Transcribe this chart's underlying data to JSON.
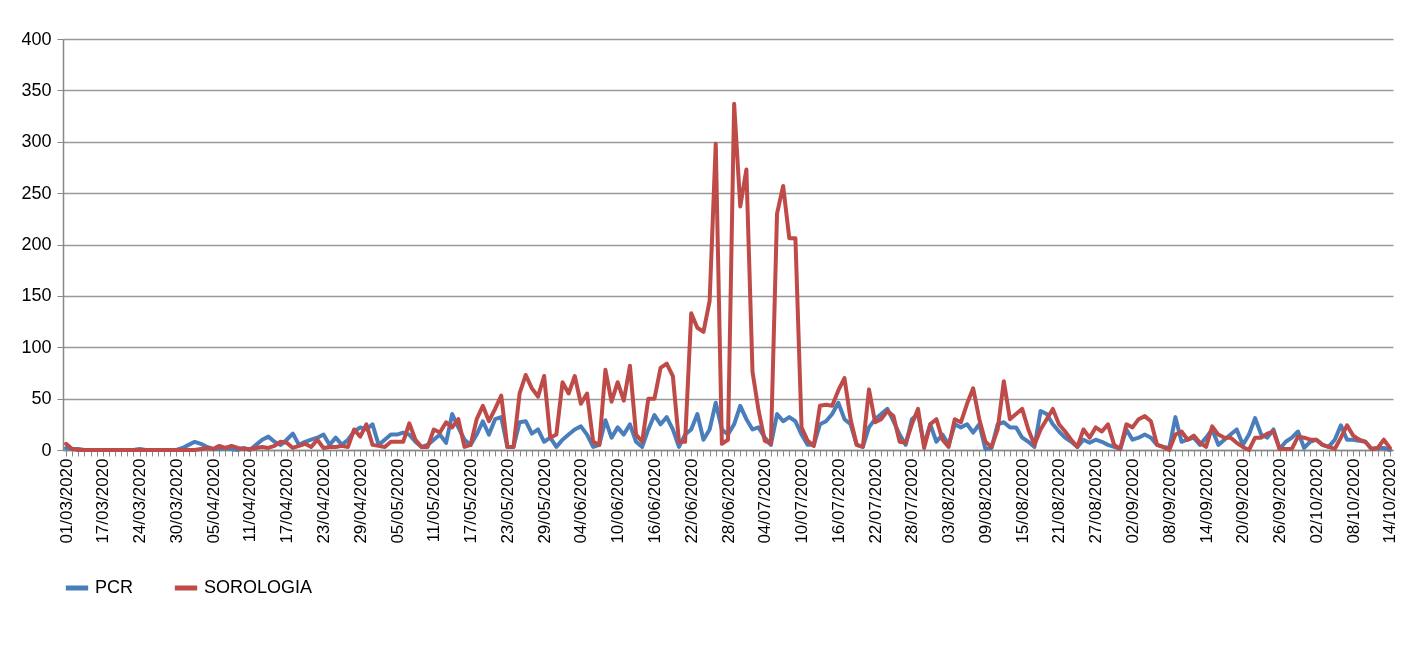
{
  "chart_data": {
    "type": "line",
    "categories": [
      "01/03/2020",
      null,
      null,
      null,
      null,
      null,
      "17/03/2020",
      null,
      null,
      null,
      null,
      null,
      "24/03/2020",
      null,
      null,
      null,
      null,
      null,
      "30/03/2020",
      null,
      null,
      null,
      null,
      null,
      "05/04/2020",
      null,
      null,
      null,
      null,
      null,
      "11/04/2020",
      null,
      null,
      null,
      null,
      null,
      "17/04/2020",
      null,
      null,
      null,
      null,
      null,
      "23/04/2020",
      null,
      null,
      null,
      null,
      null,
      "29/04/2020",
      null,
      null,
      null,
      null,
      null,
      "05/05/2020",
      null,
      null,
      null,
      null,
      null,
      "11/05/2020",
      null,
      null,
      null,
      null,
      null,
      "17/05/2020",
      null,
      null,
      null,
      null,
      null,
      "23/05/2020",
      null,
      null,
      null,
      null,
      null,
      "29/05/2020",
      null,
      null,
      null,
      null,
      null,
      "04/06/2020",
      null,
      null,
      null,
      null,
      null,
      "10/06/2020",
      null,
      null,
      null,
      null,
      null,
      "16/06/2020",
      null,
      null,
      null,
      null,
      null,
      "22/06/2020",
      null,
      null,
      null,
      null,
      null,
      "28/06/2020",
      null,
      null,
      null,
      null,
      null,
      "04/07/2020",
      null,
      null,
      null,
      null,
      null,
      "10/07/2020",
      null,
      null,
      null,
      null,
      null,
      "16/07/2020",
      null,
      null,
      null,
      null,
      null,
      "22/07/2020",
      null,
      null,
      null,
      null,
      null,
      "28/07/2020",
      null,
      null,
      null,
      null,
      null,
      "03/08/2020",
      null,
      null,
      null,
      null,
      null,
      "09/08/2020",
      null,
      null,
      null,
      null,
      null,
      "15/08/2020",
      null,
      null,
      null,
      null,
      null,
      "21/08/2020",
      null,
      null,
      null,
      null,
      null,
      "27/08/2020",
      null,
      null,
      null,
      null,
      null,
      "02/09/2020",
      null,
      null,
      null,
      null,
      null,
      "08/09/2020",
      null,
      null,
      null,
      null,
      null,
      "14/09/2020",
      null,
      null,
      null,
      null,
      null,
      "20/09/2020",
      null,
      null,
      null,
      null,
      null,
      "26/09/2020",
      null,
      null,
      null,
      null,
      null,
      "02/10/2020",
      null,
      null,
      null,
      null,
      null,
      "08/10/2020",
      null,
      null,
      null,
      null,
      null,
      "14/10/2020"
    ],
    "series": [
      {
        "name": "PCR",
        "color": "#4a7ebb",
        "values": [
          2,
          1,
          1,
          0,
          0,
          0,
          0,
          0,
          0,
          0,
          0,
          0,
          1,
          0,
          0,
          0,
          0,
          0,
          0,
          2,
          5,
          8,
          6,
          3,
          1,
          1,
          2,
          1,
          0,
          2,
          0,
          5,
          10,
          13,
          8,
          5,
          10,
          16,
          5,
          8,
          10,
          12,
          15,
          5,
          12,
          5,
          10,
          18,
          22,
          20,
          25,
          5,
          10,
          15,
          15,
          17,
          15,
          8,
          3,
          5,
          10,
          15,
          7,
          35,
          22,
          10,
          5,
          15,
          28,
          15,
          30,
          32,
          3,
          3,
          27,
          28,
          16,
          20,
          8,
          12,
          3,
          10,
          15,
          20,
          23,
          15,
          3,
          5,
          29,
          12,
          22,
          15,
          25,
          8,
          3,
          20,
          34,
          25,
          32,
          20,
          3,
          15,
          20,
          35,
          10,
          20,
          46,
          20,
          15,
          25,
          43,
          30,
          20,
          22,
          12,
          5,
          35,
          28,
          32,
          28,
          15,
          5,
          5,
          25,
          28,
          35,
          46,
          30,
          25,
          5,
          3,
          22,
          30,
          35,
          40,
          28,
          15,
          5,
          30,
          35,
          5,
          25,
          8,
          15,
          5,
          25,
          22,
          25,
          17,
          25,
          1,
          2,
          25,
          27,
          22,
          22,
          12,
          8,
          3,
          38,
          35,
          25,
          18,
          12,
          8,
          3,
          10,
          7,
          10,
          8,
          5,
          3,
          1,
          20,
          10,
          12,
          15,
          12,
          5,
          3,
          2,
          32,
          8,
          10,
          12,
          5,
          12,
          20,
          5,
          10,
          15,
          20,
          5,
          15,
          31,
          15,
          12,
          20,
          1,
          8,
          12,
          18,
          2,
          8,
          10,
          5,
          3,
          10,
          24,
          10,
          10,
          9,
          8,
          1,
          2,
          2,
          0
        ]
      },
      {
        "name": "SOROLOGIA",
        "color": "#be4b48",
        "values": [
          6,
          1,
          0,
          0,
          0,
          0,
          0,
          0,
          0,
          0,
          0,
          0,
          0,
          0,
          0,
          0,
          0,
          0,
          0,
          0,
          0,
          0,
          1,
          2,
          1,
          4,
          2,
          4,
          2,
          1,
          1,
          2,
          3,
          2,
          4,
          8,
          7,
          2,
          4,
          6,
          3,
          10,
          2,
          3,
          3,
          4,
          3,
          20,
          13,
          25,
          5,
          4,
          3,
          8,
          8,
          8,
          26,
          10,
          3,
          3,
          20,
          17,
          27,
          22,
          30,
          3,
          5,
          30,
          43,
          28,
          40,
          53,
          3,
          3,
          55,
          73,
          60,
          52,
          72,
          12,
          15,
          66,
          55,
          72,
          45,
          55,
          8,
          5,
          78,
          47,
          66,
          48,
          82,
          15,
          8,
          50,
          50,
          80,
          84,
          72,
          8,
          8,
          133,
          119,
          115,
          145,
          298,
          6,
          10,
          337,
          237,
          273,
          76,
          38,
          9,
          6,
          230,
          257,
          206,
          206,
          22,
          9,
          4,
          43,
          44,
          43,
          58,
          70,
          30,
          5,
          3,
          59,
          27,
          30,
          38,
          33,
          8,
          7,
          25,
          40,
          2,
          25,
          30,
          10,
          3,
          30,
          27,
          45,
          60,
          30,
          8,
          3,
          20,
          67,
          30,
          35,
          40,
          20,
          5,
          20,
          30,
          40,
          25,
          18,
          10,
          3,
          20,
          12,
          22,
          18,
          25,
          5,
          1,
          25,
          22,
          30,
          33,
          28,
          5,
          3,
          0,
          15,
          18,
          10,
          14,
          7,
          3,
          23,
          15,
          12,
          12,
          7,
          3,
          0,
          12,
          12,
          16,
          18,
          1,
          1,
          1,
          13,
          12,
          10,
          10,
          5,
          3,
          1,
          12,
          24,
          14,
          10,
          8,
          1,
          2,
          10,
          2
        ]
      }
    ],
    "ylim": [
      0,
      400
    ],
    "yticks": [
      0,
      50,
      100,
      150,
      200,
      250,
      300,
      350,
      400
    ],
    "grid": "y",
    "legend": "bottom"
  }
}
